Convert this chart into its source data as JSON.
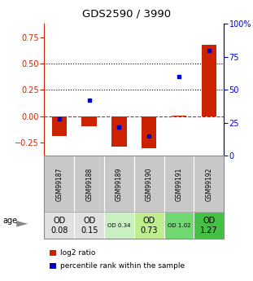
{
  "title": "GDS2590 / 3990",
  "samples": [
    "GSM99187",
    "GSM99188",
    "GSM99189",
    "GSM99190",
    "GSM99191",
    "GSM99192"
  ],
  "log2_ratio": [
    -0.19,
    -0.09,
    -0.29,
    -0.3,
    0.01,
    0.68
  ],
  "percentile_rank": [
    28,
    42,
    22,
    15,
    60,
    80
  ],
  "left_ylim": [
    -0.375,
    0.875
  ],
  "right_ylim": [
    0,
    100
  ],
  "left_yticks": [
    -0.25,
    0.0,
    0.25,
    0.5,
    0.75
  ],
  "right_yticks": [
    0,
    25,
    50,
    75,
    100
  ],
  "right_yticklabels": [
    "0",
    "25",
    "50",
    "75",
    "100%"
  ],
  "bar_color": "#cc2200",
  "dot_color": "#0000cc",
  "dashed_line_color": "#cc2200",
  "dotted_line_color": "#000000",
  "age_labels": [
    "OD\n0.08",
    "OD\n0.15",
    "OD 0.34",
    "OD\n0.73",
    "OD 1.02",
    "OD\n1.27"
  ],
  "age_bg_colors": [
    "#e0e0e0",
    "#e0e0e0",
    "#c8f0c0",
    "#c0ec90",
    "#70d870",
    "#44c044"
  ],
  "age_fontsize_large": [
    true,
    true,
    false,
    true,
    false,
    true
  ],
  "sample_bg_color": "#c8c8c8",
  "legend_items": [
    {
      "color": "#cc2200",
      "label": "log2 ratio"
    },
    {
      "color": "#0000cc",
      "label": "percentile rank within the sample"
    }
  ]
}
